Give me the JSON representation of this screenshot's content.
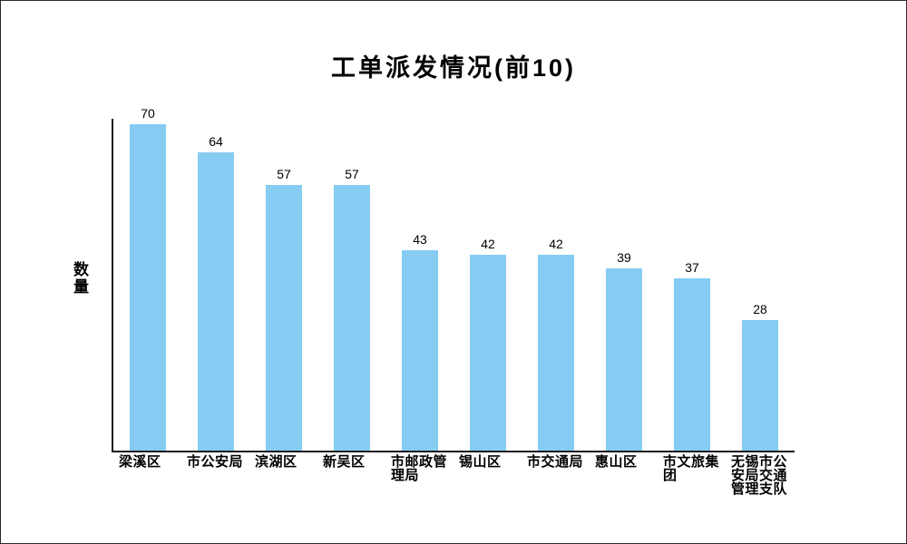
{
  "frame": {
    "background": "#ffffff",
    "border_color": "#2b2b2b"
  },
  "chart_data": {
    "type": "bar",
    "title": "工单派发情况(前10)",
    "xlabel": "",
    "ylabel": "数量",
    "categories": [
      "梁溪区",
      "市公安局",
      "滨湖区",
      "新吴区",
      "市邮政管理局",
      "锡山区",
      "市交通局",
      "惠山区",
      "市文旅集团",
      "无锡市公安局交通管理支队"
    ],
    "values": [
      70,
      64,
      57,
      57,
      43,
      42,
      42,
      39,
      37,
      28
    ],
    "ylim": [
      0,
      70
    ],
    "grid": false,
    "legend": false,
    "value_labels_shown": true,
    "bar_color": "#86ccf2",
    "axis_color": "#1a1a1a",
    "text_color": "#000000"
  }
}
